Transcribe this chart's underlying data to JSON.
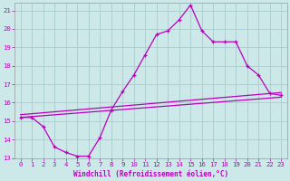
{
  "xlabel": "Windchill (Refroidissement éolien,°C)",
  "bg_color": "#cce8e8",
  "grid_color": "#aacccc",
  "line_color": "#bb00bb",
  "xlim": [
    -0.5,
    23.5
  ],
  "ylim": [
    13,
    21.4
  ],
  "xticks": [
    0,
    1,
    2,
    3,
    4,
    5,
    6,
    7,
    8,
    9,
    10,
    11,
    12,
    13,
    14,
    15,
    16,
    17,
    18,
    19,
    20,
    21,
    22,
    23
  ],
  "yticks": [
    13,
    14,
    15,
    16,
    17,
    18,
    19,
    20,
    21
  ],
  "line1_x": [
    0,
    1,
    2,
    3,
    4,
    5,
    6,
    7,
    8,
    9,
    10,
    11,
    12,
    13,
    14,
    15,
    16,
    17,
    18,
    19,
    20,
    21,
    22,
    23
  ],
  "line1_y": [
    15.2,
    15.2,
    14.7,
    13.6,
    13.3,
    13.1,
    13.1,
    14.1,
    15.6,
    16.6,
    17.5,
    18.6,
    19.7,
    19.9,
    20.5,
    21.3,
    19.9,
    19.3,
    19.3,
    19.3,
    18.0,
    17.5,
    16.5,
    16.4
  ],
  "line2_x": [
    0,
    23
  ],
  "line2_y": [
    15.2,
    16.3
  ],
  "line3_x": [
    0,
    23
  ],
  "line3_y": [
    15.35,
    16.55
  ],
  "xlabel_fontsize": 5.5,
  "tick_fontsize": 5.2
}
